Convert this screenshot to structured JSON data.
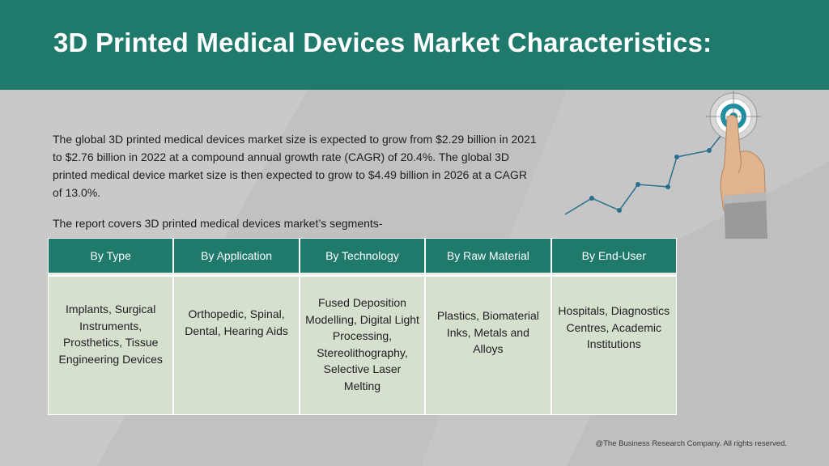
{
  "header": {
    "title": "3D Printed Medical Devices Market Characteristics:"
  },
  "intro": {
    "paragraph": "The global 3D printed medical devices market size is expected to grow from $2.29 billion in 2021 to $2.76 billion in 2022 at a compound annual growth rate (CAGR) of 20.4%. The global 3D printed medical device market size is then expected to grow to $4.49 billion in 2026 at a CAGR of 13.0%.",
    "segments_lead": "The report covers 3D printed medical devices market’s segments-"
  },
  "segments": {
    "columns": [
      {
        "header": "By Type",
        "body": "Implants, Surgical Instruments, Prosthetics, Tissue Engineering Devices"
      },
      {
        "header": "By Application",
        "body": "Orthopedic, Spinal, Dental, Hearing Aids"
      },
      {
        "header": "By Technology",
        "body": "Fused Deposition Modelling, Digital Light Processing, Stereolithography, Selective Laser Melting"
      },
      {
        "header": "By Raw Material",
        "body": "Plastics, Biomaterial Inks, Metals and Alloys"
      },
      {
        "header": "By End-User",
        "body": "Hospitals, Diagnostics Centres, Academic Institutions"
      }
    ]
  },
  "footer": {
    "copyright": "@The Business Research Company. All rights reserved."
  },
  "colors": {
    "header_bg": "#1f7a6c",
    "table_body_bg": "#d5e0cf",
    "page_bg": "#c4c4c4",
    "chart_line": "#2b6e8c"
  },
  "icons": {
    "illustration": "growth-chart-target-hand-icon"
  }
}
